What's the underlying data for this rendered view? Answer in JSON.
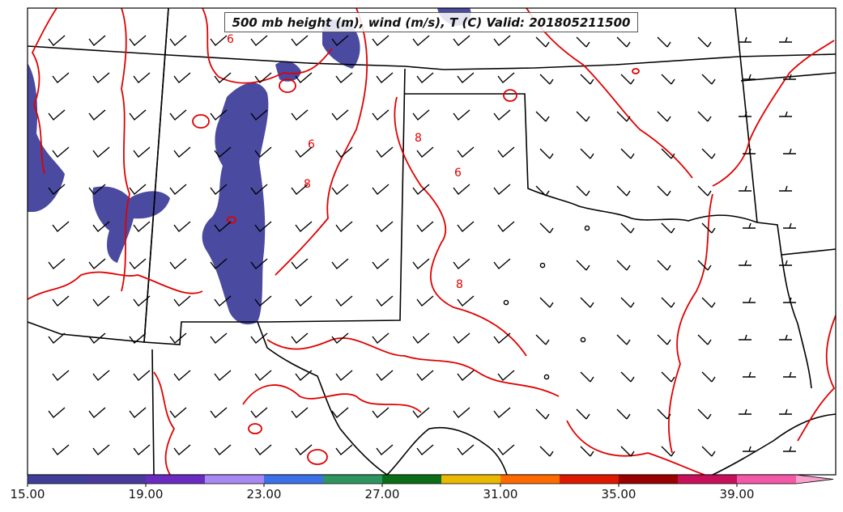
{
  "title": "500 mb height (m), wind (m/s), T (C) Valid: 201805211500",
  "colorbar": {
    "tick_labels": [
      "15.00",
      "19.00",
      "23.00",
      "27.00",
      "31.00",
      "35.00",
      "39.00"
    ],
    "colors": [
      "#3f3f9a",
      "#4a3a9e",
      "#6a2cc0",
      "#a888f2",
      "#3a70e8",
      "#2f9560",
      "#0b6d17",
      "#e9b800",
      "#ff6a00",
      "#dd1a00",
      "#9a0000",
      "#c8105a",
      "#f25aa8",
      "#f9a0cf"
    ]
  },
  "map": {
    "lon_range": [
      -113,
      -93
    ],
    "lat_range": [
      25,
      37
    ],
    "fill_color": "#4a4aa0",
    "contour_color": "#e00000",
    "contour_labels": [
      "6",
      "6",
      "8",
      "6",
      "8",
      "8"
    ]
  }
}
